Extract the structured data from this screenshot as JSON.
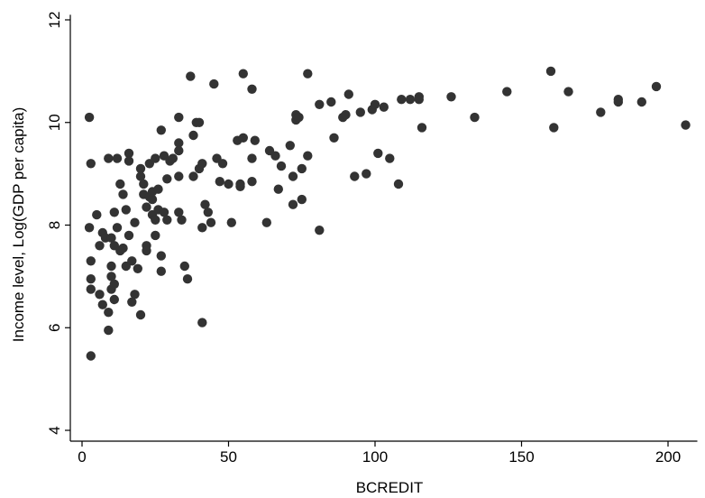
{
  "chart_data": {
    "type": "scatter",
    "title": "",
    "xlabel": "BCREDIT",
    "ylabel": "Income level, Log(GDP per capita)",
    "xlim": [
      0,
      210
    ],
    "ylim": [
      3.8,
      12.1
    ],
    "xticks": [
      0,
      50,
      100,
      150,
      200
    ],
    "yticks": [
      4,
      6,
      8,
      10,
      12
    ],
    "xtick_labels": [
      "0",
      "50",
      "100",
      "150",
      "200"
    ],
    "ytick_labels": [
      "4",
      "6",
      "8",
      "10",
      "12"
    ],
    "grid": false,
    "marker_color": "#333333",
    "points": [
      [
        2.5,
        10.1
      ],
      [
        3,
        9.2
      ],
      [
        2.5,
        7.95
      ],
      [
        3,
        7.3
      ],
      [
        3,
        6.95
      ],
      [
        3,
        6.75
      ],
      [
        3,
        5.45
      ],
      [
        5,
        8.2
      ],
      [
        6,
        6.65
      ],
      [
        6,
        7.6
      ],
      [
        7,
        7.85
      ],
      [
        7,
        6.45
      ],
      [
        8,
        7.75
      ],
      [
        9,
        9.3
      ],
      [
        9,
        6.3
      ],
      [
        9,
        5.95
      ],
      [
        10,
        7.75
      ],
      [
        10,
        7.2
      ],
      [
        10,
        7.0
      ],
      [
        10,
        6.75
      ],
      [
        11,
        8.25
      ],
      [
        11,
        7.6
      ],
      [
        11,
        6.85
      ],
      [
        11,
        6.55
      ],
      [
        12,
        9.3
      ],
      [
        12,
        7.95
      ],
      [
        13,
        8.8
      ],
      [
        13,
        7.5
      ],
      [
        14,
        8.6
      ],
      [
        14,
        7.55
      ],
      [
        15,
        8.3
      ],
      [
        15,
        7.2
      ],
      [
        16,
        9.4
      ],
      [
        16,
        9.25
      ],
      [
        16,
        7.8
      ],
      [
        17,
        7.3
      ],
      [
        17,
        6.5
      ],
      [
        18,
        6.65
      ],
      [
        18,
        8.05
      ],
      [
        19,
        7.15
      ],
      [
        20,
        9.1
      ],
      [
        20,
        8.95
      ],
      [
        20,
        6.25
      ],
      [
        21,
        8.8
      ],
      [
        21,
        8.6
      ],
      [
        22,
        8.35
      ],
      [
        22,
        7.6
      ],
      [
        22,
        7.5
      ],
      [
        23,
        9.2
      ],
      [
        23,
        8.55
      ],
      [
        24,
        8.2
      ],
      [
        24,
        8.5
      ],
      [
        24,
        8.65
      ],
      [
        25,
        9.3
      ],
      [
        25,
        8.1
      ],
      [
        25,
        7.8
      ],
      [
        26,
        8.3
      ],
      [
        26,
        8.7
      ],
      [
        27,
        7.1
      ],
      [
        27,
        7.4
      ],
      [
        27,
        9.85
      ],
      [
        28,
        8.25
      ],
      [
        28,
        9.35
      ],
      [
        29,
        8.9
      ],
      [
        29,
        8.1
      ],
      [
        30,
        9.25
      ],
      [
        31,
        9.3
      ],
      [
        33,
        10.1
      ],
      [
        33,
        9.6
      ],
      [
        33,
        9.45
      ],
      [
        33,
        8.95
      ],
      [
        33,
        8.25
      ],
      [
        34,
        8.1
      ],
      [
        35,
        7.2
      ],
      [
        36,
        6.95
      ],
      [
        37,
        10.9
      ],
      [
        38,
        9.75
      ],
      [
        38,
        8.95
      ],
      [
        39,
        10.0
      ],
      [
        40,
        10.0
      ],
      [
        40,
        9.1
      ],
      [
        41,
        9.2
      ],
      [
        41,
        7.95
      ],
      [
        41,
        6.1
      ],
      [
        42,
        8.4
      ],
      [
        43,
        8.25
      ],
      [
        44,
        8.05
      ],
      [
        45,
        10.75
      ],
      [
        46,
        9.3
      ],
      [
        47,
        8.85
      ],
      [
        48,
        9.2
      ],
      [
        50,
        8.8
      ],
      [
        51,
        8.05
      ],
      [
        53,
        9.65
      ],
      [
        54,
        8.8
      ],
      [
        54,
        8.75
      ],
      [
        55,
        10.95
      ],
      [
        55,
        9.7
      ],
      [
        58,
        10.65
      ],
      [
        58,
        9.3
      ],
      [
        58,
        8.85
      ],
      [
        59,
        9.65
      ],
      [
        63,
        8.05
      ],
      [
        64,
        9.45
      ],
      [
        66,
        9.35
      ],
      [
        67,
        8.7
      ],
      [
        68,
        9.15
      ],
      [
        71,
        9.55
      ],
      [
        72,
        8.4
      ],
      [
        72,
        8.95
      ],
      [
        73,
        10.05
      ],
      [
        73,
        10.15
      ],
      [
        74,
        10.1
      ],
      [
        75,
        8.5
      ],
      [
        75,
        9.1
      ],
      [
        77,
        10.95
      ],
      [
        77,
        9.35
      ],
      [
        81,
        10.35
      ],
      [
        81,
        7.9
      ],
      [
        85,
        10.4
      ],
      [
        86,
        9.7
      ],
      [
        89,
        10.1
      ],
      [
        90,
        10.15
      ],
      [
        91,
        10.55
      ],
      [
        93,
        8.95
      ],
      [
        95,
        10.2
      ],
      [
        97,
        9.0
      ],
      [
        99,
        10.25
      ],
      [
        100,
        10.35
      ],
      [
        101,
        9.4
      ],
      [
        103,
        10.3
      ],
      [
        105,
        9.3
      ],
      [
        108,
        8.8
      ],
      [
        109,
        10.45
      ],
      [
        112,
        10.45
      ],
      [
        115,
        10.5
      ],
      [
        115,
        10.45
      ],
      [
        116,
        9.9
      ],
      [
        126,
        10.5
      ],
      [
        134,
        10.1
      ],
      [
        145,
        10.6
      ],
      [
        160,
        11.0
      ],
      [
        161,
        9.9
      ],
      [
        166,
        10.6
      ],
      [
        177,
        10.2
      ],
      [
        183,
        10.45
      ],
      [
        183,
        10.4
      ],
      [
        191,
        10.4
      ],
      [
        196,
        10.7
      ],
      [
        206,
        9.95
      ]
    ]
  }
}
